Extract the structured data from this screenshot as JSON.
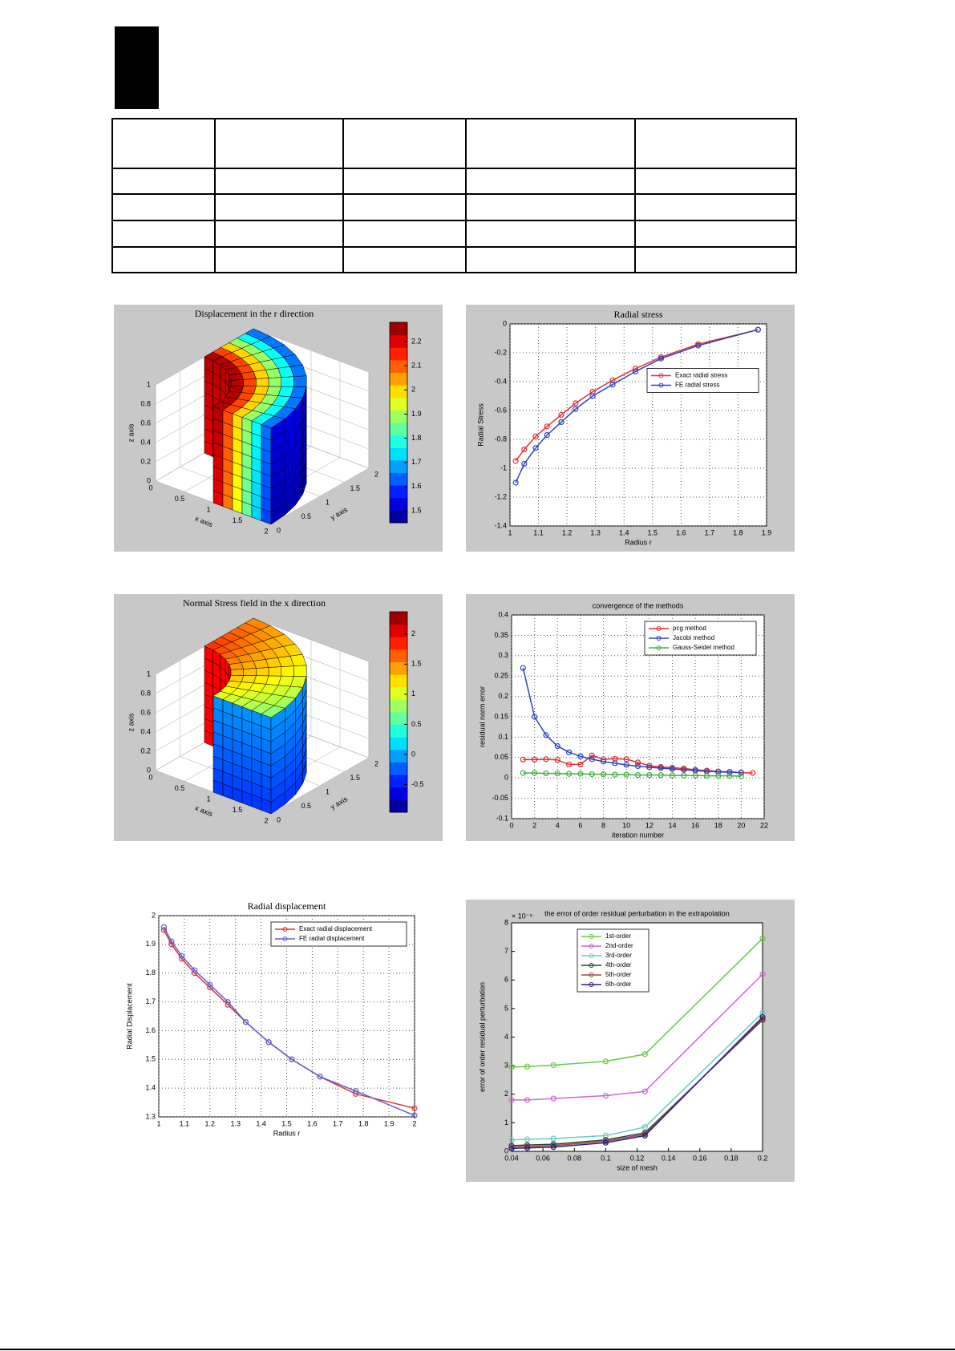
{
  "chart_data": [
    {
      "type": "surface3d",
      "title": "Displacement in the r direction",
      "xlabel": "x axis",
      "ylabel": "y axis",
      "zlabel": "z axis",
      "xlim": [
        0,
        2
      ],
      "ylim": [
        0,
        2
      ],
      "zlim": [
        0,
        1
      ],
      "xticks": [
        0,
        0.5,
        1,
        1.5,
        2
      ],
      "yticks": [
        0,
        0.5,
        1,
        1.5,
        2
      ],
      "zticks": [
        0,
        0.2,
        0.4,
        0.6,
        0.8,
        1
      ],
      "clim": [
        1.45,
        2.28
      ],
      "cticks": [
        1.5,
        1.6,
        1.7,
        1.8,
        1.9,
        2,
        2.1,
        2.2
      ],
      "background": "#c8c8c8"
    },
    {
      "type": "line",
      "title": "Radial stress",
      "xlabel": "Radius r",
      "ylabel": "Radial Stress",
      "xlim": [
        1,
        1.9
      ],
      "xticks": [
        1,
        1.1,
        1.2,
        1.3,
        1.4,
        1.5,
        1.6,
        1.7,
        1.8,
        1.9
      ],
      "ylim": [
        -1.4,
        0
      ],
      "yticks": [
        0,
        -0.2,
        -0.4,
        -0.6,
        -0.8,
        -1,
        -1.2,
        -1.4
      ],
      "grid": true,
      "legend": "upper right",
      "background": "#c8c8c8",
      "series": [
        {
          "name": "Exact radial stress",
          "color": "#e03030",
          "x": [
            1.02,
            1.05,
            1.09,
            1.13,
            1.18,
            1.23,
            1.29,
            1.36,
            1.44,
            1.53,
            1.66,
            1.87
          ],
          "values": [
            -0.95,
            -0.87,
            -0.78,
            -0.71,
            -0.63,
            -0.55,
            -0.47,
            -0.39,
            -0.31,
            -0.23,
            -0.14,
            -0.04
          ]
        },
        {
          "name": "FE radial stress",
          "color": "#3040c0",
          "x": [
            1.02,
            1.05,
            1.09,
            1.13,
            1.18,
            1.23,
            1.29,
            1.36,
            1.44,
            1.53,
            1.66,
            1.87
          ],
          "values": [
            -1.1,
            -0.97,
            -0.86,
            -0.77,
            -0.68,
            -0.59,
            -0.5,
            -0.42,
            -0.33,
            -0.24,
            -0.15,
            -0.04
          ]
        }
      ]
    },
    {
      "type": "surface3d",
      "title": "Normal Stress field in the x direction",
      "xlabel": "x axis",
      "ylabel": "y axis",
      "zlabel": "z axis",
      "xlim": [
        0,
        2
      ],
      "ylim": [
        0,
        2
      ],
      "zlim": [
        0,
        1
      ],
      "xticks": [
        0,
        0.5,
        1,
        1.5,
        2
      ],
      "yticks": [
        0,
        0.5,
        1,
        1.5,
        2
      ],
      "zticks": [
        0,
        0.2,
        0.4,
        0.6,
        0.8,
        1
      ],
      "clim": [
        -0.96,
        2.37
      ],
      "cticks": [
        -0.5,
        0,
        0.5,
        1,
        1.5,
        2
      ],
      "background": "#c8c8c8"
    },
    {
      "type": "line",
      "title": "convergence of the methods",
      "xlabel": "iteration number",
      "ylabel": "residual norm error",
      "xlim": [
        0,
        22
      ],
      "xticks": [
        0,
        2,
        4,
        6,
        8,
        10,
        12,
        14,
        16,
        18,
        20,
        22
      ],
      "ylim": [
        -0.1,
        0.4
      ],
      "yticks": [
        -0.1,
        -0.05,
        0,
        0.05,
        0.1,
        0.15,
        0.2,
        0.25,
        0.3,
        0.35,
        0.4
      ],
      "grid": true,
      "legend": "upper right",
      "background": "#c8c8c8",
      "series": [
        {
          "name": "pcg method",
          "color": "#e03030",
          "x": [
            1,
            2,
            3,
            4,
            5,
            6,
            7,
            8,
            9,
            10,
            11,
            12,
            13,
            14,
            15,
            16,
            17,
            18,
            19,
            20,
            21
          ],
          "values": [
            0.045,
            0.045,
            0.046,
            0.044,
            0.033,
            0.033,
            0.055,
            0.046,
            0.047,
            0.046,
            0.038,
            0.03,
            0.027,
            0.025,
            0.023,
            0.02,
            0.018,
            0.016,
            0.015,
            0.013,
            0.012
          ]
        },
        {
          "name": "Jacobi method",
          "color": "#3040c0",
          "x": [
            1,
            2,
            3,
            4,
            5,
            6,
            7,
            8,
            9,
            10,
            11,
            12,
            13,
            14,
            15,
            16,
            17,
            18,
            19,
            20
          ],
          "values": [
            0.27,
            0.15,
            0.105,
            0.078,
            0.063,
            0.053,
            0.046,
            0.04,
            0.036,
            0.032,
            0.029,
            0.026,
            0.024,
            0.022,
            0.02,
            0.018,
            0.016,
            0.015,
            0.014,
            0.013
          ]
        },
        {
          "name": "Gauss-Seidel method",
          "color": "#40b040",
          "x": [
            1,
            2,
            3,
            4,
            5,
            6,
            7,
            8,
            9,
            10,
            11,
            12,
            13,
            14,
            15,
            16,
            17,
            18,
            19,
            20
          ],
          "values": [
            0.012,
            0.012,
            0.011,
            0.011,
            0.01,
            0.01,
            0.009,
            0.009,
            0.008,
            0.008,
            0.007,
            0.007,
            0.007,
            0.006,
            0.006,
            0.006,
            0.005,
            0.005,
            0.005,
            0.004
          ]
        }
      ]
    },
    {
      "type": "line",
      "title": "Radial displacement",
      "xlabel": "Radius r",
      "ylabel": "Radial Displacement",
      "xlim": [
        1,
        2
      ],
      "xticks": [
        1,
        1.1,
        1.2,
        1.3,
        1.4,
        1.5,
        1.6,
        1.7,
        1.8,
        1.9,
        2
      ],
      "ylim": [
        1.3,
        2
      ],
      "yticks": [
        1.3,
        1.4,
        1.5,
        1.6,
        1.7,
        1.8,
        1.9,
        2
      ],
      "grid": true,
      "legend": "upper right",
      "background": "#ffffff",
      "series": [
        {
          "name": "Exact radial displacement",
          "color": "#e03030",
          "x": [
            1.02,
            1.05,
            1.09,
            1.14,
            1.2,
            1.27,
            1.34,
            1.43,
            1.52,
            1.63,
            1.77,
            2
          ],
          "values": [
            1.95,
            1.9,
            1.85,
            1.8,
            1.75,
            1.69,
            1.63,
            1.56,
            1.5,
            1.44,
            1.38,
            1.33
          ]
        },
        {
          "name": "FE radial displacement",
          "color": "#6060d0",
          "x": [
            1.02,
            1.05,
            1.09,
            1.14,
            1.2,
            1.27,
            1.34,
            1.43,
            1.52,
            1.63,
            1.77,
            2
          ],
          "values": [
            1.96,
            1.91,
            1.86,
            1.81,
            1.76,
            1.7,
            1.63,
            1.56,
            1.5,
            1.44,
            1.39,
            1.305
          ]
        }
      ]
    },
    {
      "type": "line",
      "title": "the error of order residual perturbation in the extrapolation",
      "xlabel": "size of mesh",
      "ylabel": "error of order residual perturbation",
      "y_multiplier": "× 10⁻⁵",
      "xlim": [
        0.04,
        0.2
      ],
      "xticks": [
        0.04,
        0.06,
        0.08,
        0.1,
        0.12,
        0.14,
        0.16,
        0.18,
        0.2
      ],
      "ylim": [
        0,
        8
      ],
      "yticks": [
        0,
        1,
        2,
        3,
        4,
        5,
        6,
        7,
        8
      ],
      "grid": false,
      "legend": "upper center",
      "background": "#c8c8c8",
      "series": [
        {
          "name": "1st-order",
          "color": "#66cc44",
          "x": [
            0.04,
            0.05,
            0.0667,
            0.1,
            0.125,
            0.2
          ],
          "values": [
            2.95,
            2.97,
            3.02,
            3.15,
            3.4,
            7.45
          ]
        },
        {
          "name": "2nd-order",
          "color": "#cc66cc",
          "x": [
            0.04,
            0.05,
            0.0667,
            0.1,
            0.125,
            0.2
          ],
          "values": [
            1.8,
            1.8,
            1.85,
            1.95,
            2.1,
            6.2
          ]
        },
        {
          "name": "3rd-order",
          "color": "#66cccc",
          "x": [
            0.04,
            0.05,
            0.0667,
            0.1,
            0.125,
            0.2
          ],
          "values": [
            0.4,
            0.42,
            0.45,
            0.55,
            0.85,
            4.85
          ]
        },
        {
          "name": "4th-order",
          "color": "#224433",
          "x": [
            0.04,
            0.05,
            0.0667,
            0.1,
            0.125,
            0.2
          ],
          "values": [
            0.2,
            0.22,
            0.25,
            0.4,
            0.65,
            4.6
          ]
        },
        {
          "name": "5th-order",
          "color": "#aa4444",
          "x": [
            0.04,
            0.05,
            0.0667,
            0.1,
            0.125,
            0.2
          ],
          "values": [
            0.15,
            0.17,
            0.2,
            0.35,
            0.6,
            4.65
          ]
        },
        {
          "name": "6th-order",
          "color": "#222288",
          "x": [
            0.04,
            0.05,
            0.0667,
            0.1,
            0.125,
            0.2
          ],
          "values": [
            0.1,
            0.12,
            0.15,
            0.3,
            0.55,
            4.7
          ]
        }
      ]
    }
  ]
}
